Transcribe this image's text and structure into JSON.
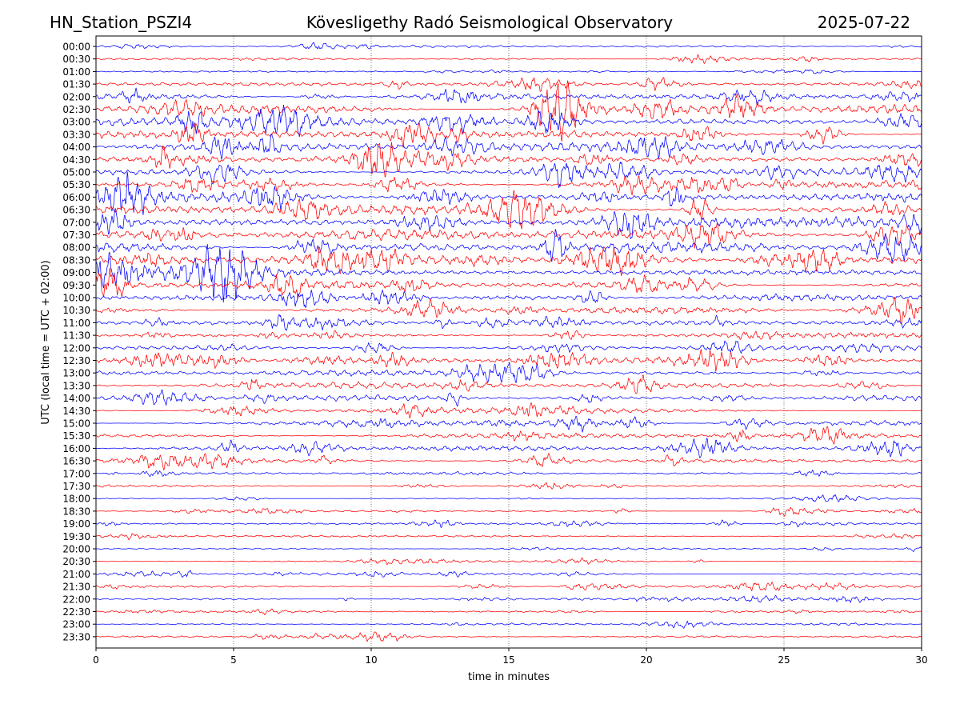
{
  "header": {
    "station": "HN_Station_PSZI4",
    "observatory": "Kövesligethy Radó Seismological Observatory",
    "date": "2025-07-22"
  },
  "chart_data": {
    "type": "line",
    "title": "Kövesligethy Radó Seismological Observatory",
    "xlabel": "time in minutes",
    "ylabel": "UTC (local time = UTC + 02:00)",
    "xlim": [
      0,
      30
    ],
    "x_ticks": [
      0,
      5,
      10,
      15,
      20,
      25,
      30
    ],
    "x_tick_labels": [
      "0",
      "5",
      "10",
      "15",
      "20",
      "25",
      "30"
    ],
    "grid": "vertical dotted at x ticks",
    "series_colors": [
      "#0000ff",
      "#ff0000"
    ],
    "color_rule": "alternating traces: blue for HH:00 rows, red for HH:30 rows",
    "traces": [
      {
        "label": "00:00",
        "amplitude": 0.8,
        "color": "#0000ff"
      },
      {
        "label": "00:30",
        "amplitude": 0.9,
        "color": "#ff0000"
      },
      {
        "label": "01:00",
        "amplitude": 0.6,
        "color": "#0000ff"
      },
      {
        "label": "01:30",
        "amplitude": 1.6,
        "color": "#ff0000"
      },
      {
        "label": "02:00",
        "amplitude": 2.4,
        "color": "#0000ff"
      },
      {
        "label": "02:30",
        "amplitude": 3.0,
        "color": "#ff0000"
      },
      {
        "label": "03:00",
        "amplitude": 3.2,
        "color": "#0000ff"
      },
      {
        "label": "03:30",
        "amplitude": 3.2,
        "color": "#ff0000"
      },
      {
        "label": "04:00",
        "amplitude": 3.0,
        "color": "#0000ff"
      },
      {
        "label": "04:30",
        "amplitude": 2.6,
        "color": "#ff0000"
      },
      {
        "label": "05:00",
        "amplitude": 2.2,
        "color": "#0000ff"
      },
      {
        "label": "05:30",
        "amplitude": 2.4,
        "color": "#ff0000"
      },
      {
        "label": "06:00",
        "amplitude": 3.0,
        "color": "#0000ff"
      },
      {
        "label": "06:30",
        "amplitude": 3.3,
        "color": "#ff0000"
      },
      {
        "label": "07:00",
        "amplitude": 3.5,
        "color": "#0000ff"
      },
      {
        "label": "07:30",
        "amplitude": 3.5,
        "color": "#ff0000"
      },
      {
        "label": "08:00",
        "amplitude": 3.6,
        "color": "#0000ff"
      },
      {
        "label": "08:30",
        "amplitude": 3.5,
        "color": "#ff0000"
      },
      {
        "label": "09:00",
        "amplitude": 3.3,
        "color": "#0000ff"
      },
      {
        "label": "09:30",
        "amplitude": 3.0,
        "color": "#ff0000"
      },
      {
        "label": "10:00",
        "amplitude": 2.6,
        "color": "#0000ff"
      },
      {
        "label": "10:30",
        "amplitude": 2.2,
        "color": "#ff0000"
      },
      {
        "label": "11:00",
        "amplitude": 1.9,
        "color": "#0000ff"
      },
      {
        "label": "11:30",
        "amplitude": 1.7,
        "color": "#ff0000"
      },
      {
        "label": "12:00",
        "amplitude": 1.6,
        "color": "#0000ff"
      },
      {
        "label": "12:30",
        "amplitude": 1.8,
        "color": "#ff0000"
      },
      {
        "label": "13:00",
        "amplitude": 1.9,
        "color": "#0000ff"
      },
      {
        "label": "13:30",
        "amplitude": 2.0,
        "color": "#ff0000"
      },
      {
        "label": "14:00",
        "amplitude": 1.8,
        "color": "#0000ff"
      },
      {
        "label": "14:30",
        "amplitude": 1.8,
        "color": "#ff0000"
      },
      {
        "label": "15:00",
        "amplitude": 1.7,
        "color": "#0000ff"
      },
      {
        "label": "15:30",
        "amplitude": 1.8,
        "color": "#ff0000"
      },
      {
        "label": "16:00",
        "amplitude": 1.7,
        "color": "#0000ff"
      },
      {
        "label": "16:30",
        "amplitude": 1.5,
        "color": "#ff0000"
      },
      {
        "label": "17:00",
        "amplitude": 1.1,
        "color": "#0000ff"
      },
      {
        "label": "17:30",
        "amplitude": 0.8,
        "color": "#ff0000"
      },
      {
        "label": "18:00",
        "amplitude": 0.5,
        "color": "#0000ff"
      },
      {
        "label": "18:30",
        "amplitude": 0.6,
        "color": "#ff0000"
      },
      {
        "label": "19:00",
        "amplitude": 0.8,
        "color": "#0000ff"
      },
      {
        "label": "19:30",
        "amplitude": 0.9,
        "color": "#ff0000"
      },
      {
        "label": "20:00",
        "amplitude": 0.6,
        "color": "#0000ff"
      },
      {
        "label": "20:30",
        "amplitude": 0.7,
        "color": "#ff0000"
      },
      {
        "label": "21:00",
        "amplitude": 0.9,
        "color": "#0000ff"
      },
      {
        "label": "21:30",
        "amplitude": 0.8,
        "color": "#ff0000"
      },
      {
        "label": "22:00",
        "amplitude": 0.7,
        "color": "#0000ff"
      },
      {
        "label": "22:30",
        "amplitude": 0.7,
        "color": "#ff0000"
      },
      {
        "label": "23:00",
        "amplitude": 0.6,
        "color": "#0000ff"
      },
      {
        "label": "23:30",
        "amplitude": 0.7,
        "color": "#ff0000"
      }
    ]
  }
}
